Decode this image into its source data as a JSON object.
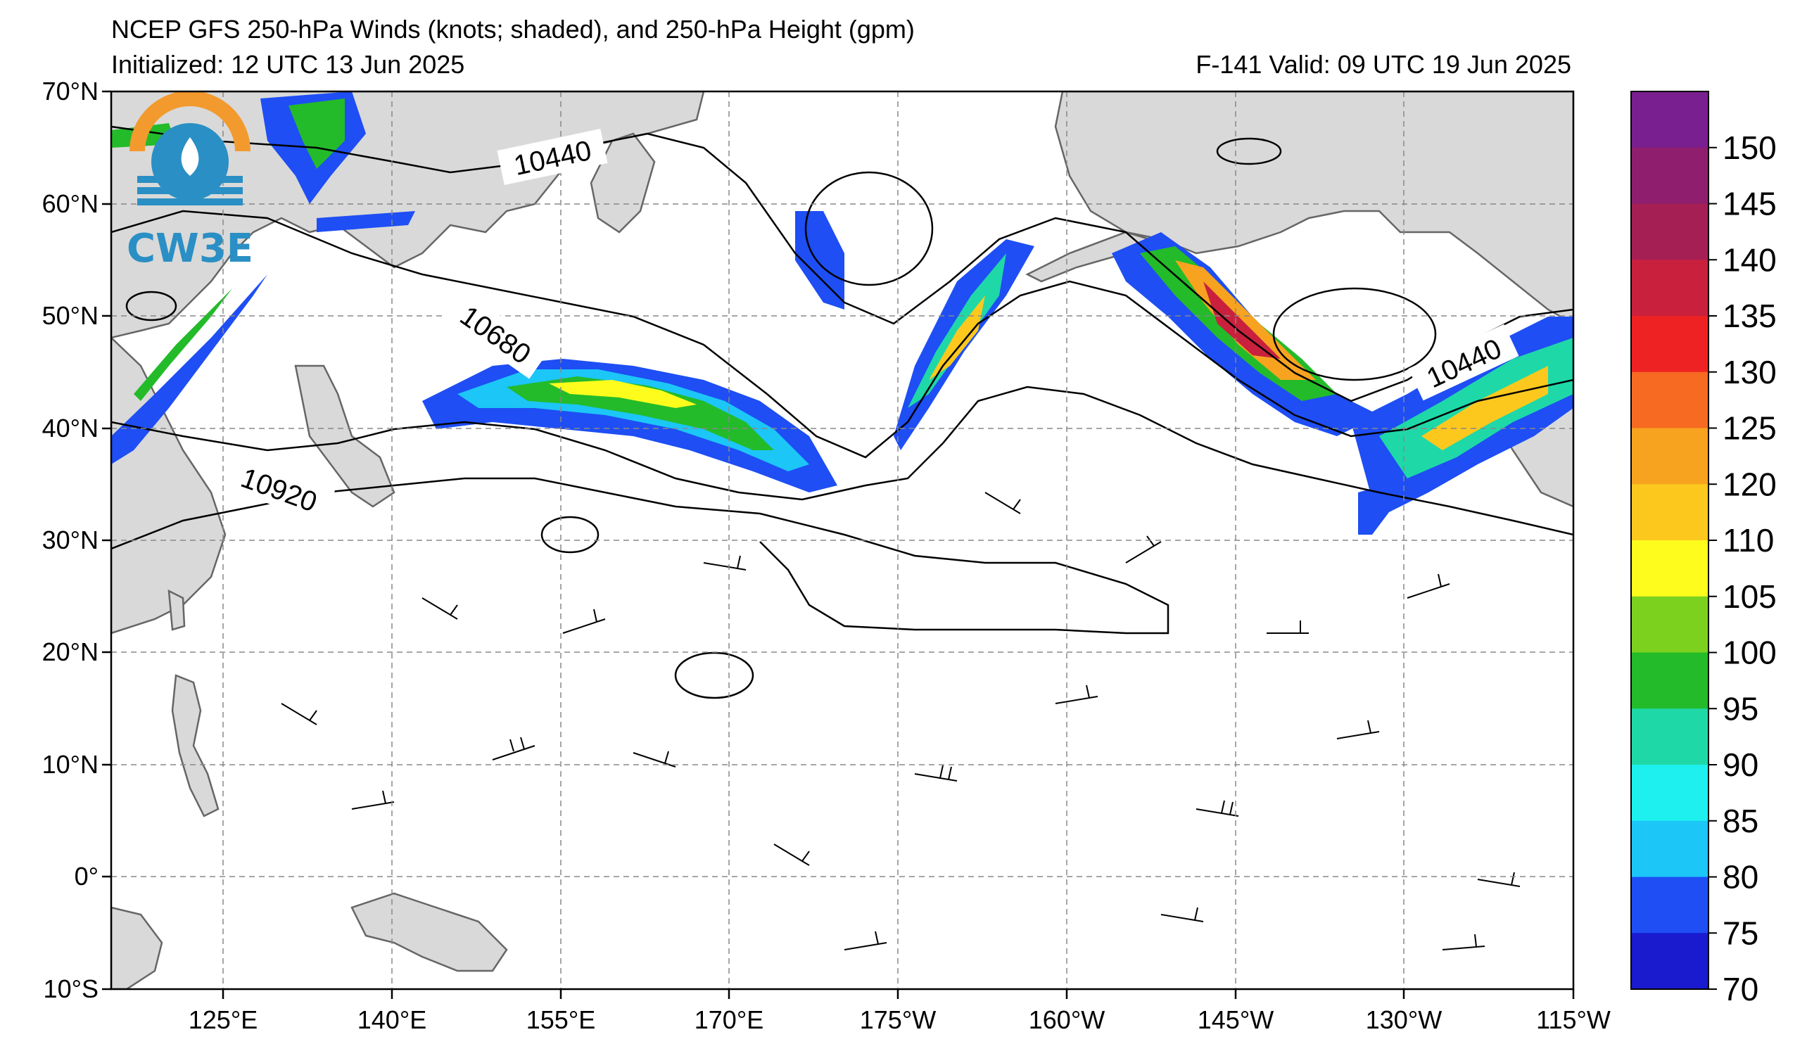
{
  "title": {
    "line1": "NCEP GFS 250-hPa Winds (knots; shaded), and 250-hPa Height (gpm)",
    "initialized": "Initialized: 12 UTC 13 Jun 2025",
    "valid": "F-141  Valid: 09 UTC 19 Jun 2025"
  },
  "logo": {
    "text": "CW3E"
  },
  "axes": {
    "lat_labels": [
      "70°N",
      "60°N",
      "50°N",
      "40°N",
      "30°N",
      "20°N",
      "10°N",
      "0°",
      "10°S"
    ],
    "lon_labels": [
      "125°E",
      "140°E",
      "155°E",
      "170°E",
      "175°W",
      "160°W",
      "145°W",
      "130°W",
      "115°W"
    ]
  },
  "contour_labels": [
    "10440",
    "10680",
    "10920",
    "10440"
  ],
  "colorbar": {
    "labels": [
      "150",
      "145",
      "140",
      "135",
      "130",
      "125",
      "120",
      "110",
      "105",
      "100",
      "95",
      "90",
      "85",
      "80",
      "75",
      "70"
    ],
    "colors": [
      "#7a1f8f",
      "#8f1f6e",
      "#a51f55",
      "#c9203e",
      "#ee2222",
      "#f66a22",
      "#f8a31f",
      "#fcc81e",
      "#fdfc1d",
      "#7cd11f",
      "#23bb2a",
      "#1fd8a8",
      "#1ef0f0",
      "#1cc6f7",
      "#1e4ef4",
      "#1a1acf"
    ]
  },
  "colors": {
    "land": "#d9d9d9",
    "coast": "#666666",
    "grid": "#888888",
    "contour": "#000000"
  }
}
